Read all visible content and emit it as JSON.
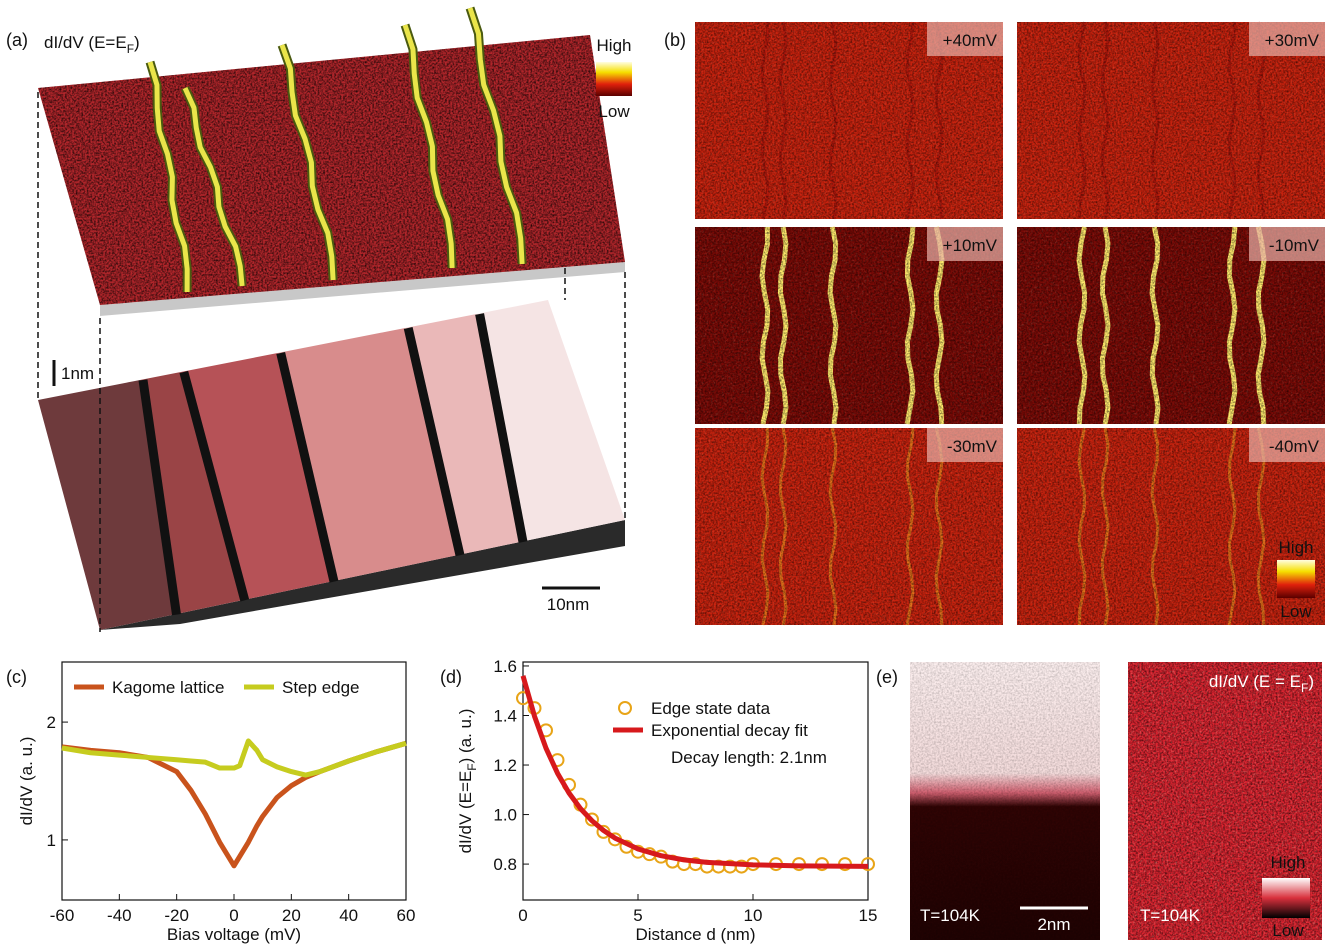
{
  "panel_labels": [
    "(a)",
    "(b)",
    "(c)",
    "(d)",
    "(e)"
  ],
  "panel_a": {
    "title_parts": [
      "dI/dV (E=E",
      "F",
      ")"
    ],
    "colorbar": {
      "high": "High",
      "low": "Low"
    },
    "height_scale": "1nm",
    "length_scale": "10nm"
  },
  "panel_b": {
    "maps": [
      "+40mV",
      "+30mV",
      "+10mV",
      "-10mV",
      "-30mV",
      "-40mV"
    ],
    "colorbar": {
      "high": "High",
      "low": "Low"
    }
  },
  "panel_e": {
    "temperature_left": "T=104K",
    "scale": "2nm",
    "temperature_right": "T=104K",
    "title_parts": [
      "dI/dV (E = E",
      "F",
      ")"
    ],
    "colorbar": {
      "high": "High",
      "low": "Low"
    }
  },
  "chart_data": [
    {
      "type": "line",
      "xlabel": "Bias voltage (mV)",
      "ylabel": "dI/dV (a. u.)",
      "x": [
        -60,
        -50,
        -40,
        -30,
        -20,
        -15,
        -10,
        -5,
        0,
        2,
        5,
        8,
        10,
        15,
        20,
        25,
        30,
        40,
        50,
        60
      ],
      "series": [
        {
          "name": "Kagome lattice",
          "color": "#c9531c",
          "values": [
            1.79,
            1.76,
            1.74,
            1.7,
            1.58,
            1.42,
            1.22,
            0.98,
            0.78,
            0.86,
            0.98,
            1.12,
            1.2,
            1.36,
            1.46,
            1.53,
            1.58,
            1.67,
            1.75,
            1.82
          ]
        },
        {
          "name": "Step edge",
          "color": "#c6cc1f",
          "values": [
            1.78,
            1.74,
            1.72,
            1.7,
            1.68,
            1.67,
            1.66,
            1.61,
            1.61,
            1.63,
            1.84,
            1.76,
            1.68,
            1.62,
            1.58,
            1.55,
            1.58,
            1.67,
            1.75,
            1.82
          ]
        }
      ],
      "xlim": [
        -60,
        60
      ],
      "xticks": [
        -60,
        -40,
        -20,
        0,
        20,
        40,
        60
      ],
      "ylim": [
        0.49,
        2.51
      ],
      "yticks": [
        1,
        2
      ],
      "legend": "top"
    },
    {
      "type": "scatter",
      "xlabel": "Distance d (nm)",
      "ylabel_parts": [
        "dI/dV (E=E",
        "F",
        ") (a. u.)"
      ],
      "annotation": "Decay length: 2.1nm",
      "series": [
        {
          "name": "Edge state data",
          "type": "scatter",
          "color": "#e8a417",
          "x": [
            0,
            0.5,
            1,
            1.5,
            2,
            2.5,
            3,
            3.5,
            4,
            4.5,
            5,
            5.5,
            6,
            6.5,
            7,
            7.5,
            8,
            8.5,
            9,
            9.5,
            10,
            11,
            12,
            13,
            14,
            15
          ],
          "values": [
            1.47,
            1.43,
            1.34,
            1.22,
            1.12,
            1.04,
            0.98,
            0.93,
            0.9,
            0.87,
            0.85,
            0.84,
            0.83,
            0.81,
            0.8,
            0.8,
            0.79,
            0.79,
            0.79,
            0.79,
            0.8,
            0.8,
            0.8,
            0.8,
            0.8,
            0.8
          ]
        },
        {
          "name": "Exponential decay fit",
          "type": "line",
          "color": "#d7191c",
          "x": [
            0,
            0.5,
            1,
            1.5,
            2,
            2.5,
            3,
            3.5,
            4,
            5,
            6,
            7,
            8,
            10,
            12,
            15
          ],
          "values": [
            1.56,
            1.397,
            1.268,
            1.167,
            1.087,
            1.024,
            0.975,
            0.936,
            0.905,
            0.861,
            0.834,
            0.817,
            0.807,
            0.797,
            0.793,
            0.791
          ]
        }
      ],
      "xlim": [
        0,
        15
      ],
      "xticks": [
        0,
        5,
        10,
        15
      ],
      "ylim": [
        0.655,
        1.616
      ],
      "yticks": [
        0.8,
        {
          "value": 1,
          "label": "1.0"
        },
        1.2,
        1.4,
        1.6
      ],
      "legend": "upper right"
    }
  ]
}
